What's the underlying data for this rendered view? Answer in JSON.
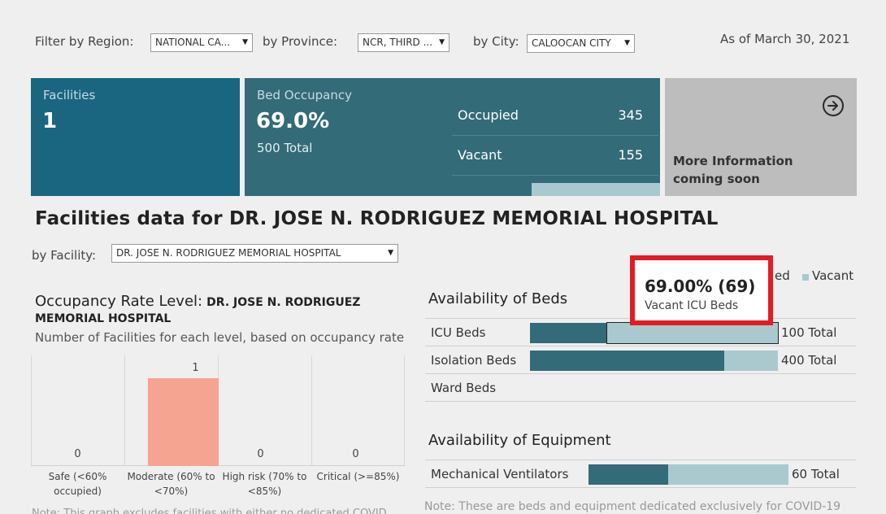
{
  "filters": {
    "region_label": "Filter by Region:",
    "region_value": "NATIONAL CA...",
    "province_label": "by Province:",
    "province_value": "NCR, THIRD ...",
    "city_label": "by City:",
    "city_value": "CALOOCAN CITY",
    "as_of": "As of March 30, 2021"
  },
  "kpis": {
    "facilities_title": "Facilities",
    "facilities_value": "1",
    "bed_title": "Bed Occupancy",
    "bed_value": "69.0%",
    "bed_total": "500 Total",
    "occupied_label": "Occupied",
    "occupied_value": "345",
    "vacant_label": "Vacant",
    "vacant_value": "155",
    "more_info_line1": "More Information",
    "more_info_line2": "coming soon"
  },
  "facility": {
    "heading": "Facilities data for DR. JOSE N. RODRIGUEZ MEMORIAL HOSPITAL",
    "by_label": "by Facility:",
    "select_value": "DR. JOSE N. RODRIGUEZ MEMORIAL HOSPITAL"
  },
  "occupancy": {
    "title": "Occupancy Rate Level:",
    "title_bold_1": "DR. JOSE N. RODRIGUEZ",
    "title_bold_2": "MEMORIAL HOSPITAL",
    "subtitle": "Number of Facilities for each level, based on occupancy rate",
    "note": "Note: This graph excludes facilities with either no dedicated COVID"
  },
  "chart_data": {
    "type": "bar",
    "categories": [
      "Safe (<60% occupied)",
      "Moderate (60% to <70%)",
      "High risk (70% to <85%)",
      "Critical (>=85%)"
    ],
    "category_lines": [
      [
        "Safe (<60%",
        "occupied)"
      ],
      [
        "Moderate (60% to",
        "<70%)"
      ],
      [
        "High risk (70% to",
        "<85%)"
      ],
      [
        "Critical (>=85%)",
        ""
      ]
    ],
    "values": [
      0,
      1,
      0,
      0
    ],
    "value_labels": [
      "0",
      "1",
      "0",
      "0"
    ],
    "highlight_color": "#f5a491",
    "ylim": [
      0,
      1
    ]
  },
  "beds": {
    "title": "Availability of Beds",
    "legend_occupied": "ed",
    "legend_vacant": "Vacant",
    "rows": [
      {
        "label": "ICU Beds",
        "occupied": 31,
        "vacant": 69,
        "total": "100 Total"
      },
      {
        "label": "Isolation Beds",
        "occupied": 314,
        "vacant": 86,
        "total": "400 Total"
      },
      {
        "label": "Ward Beds",
        "occupied": 0,
        "vacant": 0,
        "total": ""
      }
    ]
  },
  "equipment": {
    "title": "Availability of Equipment",
    "rows": [
      {
        "label": "Mechanical Ventilators",
        "occupied": 24,
        "vacant": 36,
        "total": "60 Total"
      }
    ],
    "note": "Note: These are beds and equipment dedicated exclusively for COVID-19"
  },
  "tooltip": {
    "value": "69.00% (69)",
    "label": "Vacant ICU Beds"
  },
  "colors": {
    "facilities_tile": "#1a6680",
    "bed_tile": "#336b78",
    "info_tile": "#bdbdbd",
    "occupied_bar": "#336b78",
    "vacant_bar": "#a9c9ce",
    "tooltip_border": "#e31b23"
  }
}
